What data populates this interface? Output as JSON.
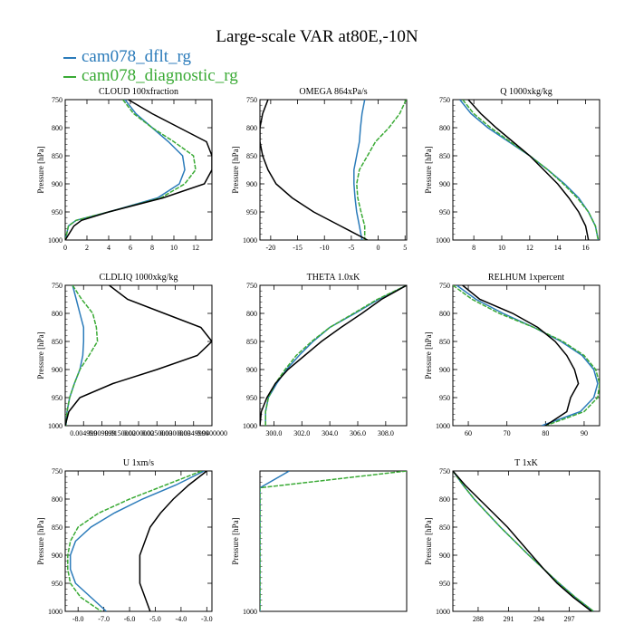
{
  "title": "Large-scale VAR at80E,-10N",
  "legend": [
    {
      "name": "cam078_dflt_rg",
      "color": "#2b7bba"
    },
    {
      "name": "cam078_diagnostic_rg",
      "color": "#3aaa35"
    }
  ],
  "reference_line_color": "#000000",
  "chart_data": [
    {
      "type": "line",
      "title": "CLOUD  100xfraction",
      "ylabel": "Pressure [hPa]",
      "xlim": [
        0,
        13.5
      ],
      "ylim": [
        750,
        1000
      ],
      "xticks": [
        0,
        2,
        4,
        6,
        8,
        10,
        12
      ],
      "xticklabels": [
        "0",
        "2",
        "4",
        "6",
        "8",
        "10",
        "12"
      ],
      "yticks": [
        750,
        800,
        850,
        900,
        950,
        1000
      ],
      "pressure": [
        750,
        775,
        800,
        825,
        850,
        875,
        900,
        925,
        950,
        965,
        975,
        1000
      ],
      "series": [
        {
          "values": [
            5.5,
            6.5,
            8.0,
            9.5,
            10.8,
            11.0,
            10.5,
            8.5,
            4.0,
            1.0,
            0.3,
            0.0
          ]
        },
        {
          "values": [
            5.3,
            6.3,
            8.0,
            10.0,
            11.8,
            12.0,
            11.0,
            8.8,
            4.0,
            1.0,
            0.3,
            0.0
          ]
        },
        {
          "values": [
            5.8,
            8.0,
            10.5,
            13.0,
            13.5,
            13.5,
            12.8,
            9.0,
            4.0,
            1.5,
            0.8,
            0.0
          ]
        }
      ]
    },
    {
      "type": "line",
      "title": "OMEGA  864xPa/s",
      "ylabel": "Pressure [hPa]",
      "xlim": [
        -22,
        5.3
      ],
      "ylim": [
        750,
        1000
      ],
      "xticks": [
        -20,
        -15,
        -10,
        -5,
        0,
        5
      ],
      "xticklabels": [
        "-20",
        "-15",
        "-10",
        "-5",
        "0",
        "5"
      ],
      "yticks": [
        750,
        800,
        850,
        900,
        950,
        1000
      ],
      "pressure": [
        750,
        775,
        800,
        825,
        850,
        875,
        900,
        925,
        950,
        975,
        1000
      ],
      "series": [
        {
          "values": [
            -2.5,
            -3.0,
            -3.3,
            -3.5,
            -4.0,
            -4.5,
            -4.5,
            -4.3,
            -4.0,
            -3.5,
            -3.0
          ]
        },
        {
          "values": [
            5.2,
            4.0,
            2.0,
            -0.5,
            -2.0,
            -3.5,
            -4.0,
            -3.8,
            -3.2,
            -2.5,
            -2.5
          ]
        },
        {
          "values": [
            -20.5,
            -21.5,
            -22.0,
            -22.0,
            -21.5,
            -20.5,
            -19.0,
            -16.0,
            -12.0,
            -7.0,
            -2.0
          ]
        }
      ]
    },
    {
      "type": "line",
      "title": "Q  1000xkg/kg",
      "ylabel": "Pressure [hPa]",
      "xlim": [
        6.5,
        17
      ],
      "ylim": [
        750,
        1000
      ],
      "xticks": [
        8,
        10,
        12,
        14,
        16
      ],
      "xticklabels": [
        "8",
        "10",
        "12",
        "14",
        "16"
      ],
      "yticks": [
        750,
        800,
        850,
        900,
        950,
        1000
      ],
      "pressure": [
        750,
        775,
        800,
        825,
        850,
        875,
        900,
        925,
        950,
        975,
        1000
      ],
      "series": [
        {
          "values": [
            7.0,
            7.8,
            9.0,
            10.5,
            12.0,
            13.3,
            14.5,
            15.5,
            16.2,
            16.7,
            16.9
          ]
        },
        {
          "values": [
            7.2,
            8.0,
            9.2,
            10.6,
            12.0,
            13.3,
            14.4,
            15.4,
            16.2,
            16.7,
            16.9
          ]
        },
        {
          "values": [
            7.6,
            8.5,
            9.6,
            10.8,
            12.0,
            13.0,
            14.0,
            14.8,
            15.5,
            16.0,
            16.2
          ]
        }
      ]
    },
    {
      "type": "line",
      "title": "CLDLIQ  1000xkg/kg",
      "ylabel": "Pressure [hPa]",
      "xlim": [
        0,
        0.04
      ],
      "ylim": [
        750,
        1000
      ],
      "xticks": [
        0.005,
        0.01,
        0.015,
        0.02,
        0.025,
        0.03,
        0.035,
        0.04
      ],
      "xticklabels": [
        "0.004999",
        "0.009999",
        "0.0150000",
        "0.0200000",
        "0.0250000",
        "0.0300000",
        "0.0349999",
        "0.0400000"
      ],
      "yticks": [
        750,
        800,
        850,
        900,
        950,
        1000
      ],
      "pressure": [
        750,
        775,
        800,
        825,
        850,
        875,
        900,
        925,
        950,
        975,
        1000
      ],
      "series": [
        {
          "values": [
            0.002,
            0.003,
            0.004,
            0.005,
            0.005,
            0.0048,
            0.004,
            0.0025,
            0.0012,
            0.0005,
            0.0002
          ]
        },
        {
          "values": [
            0.002,
            0.0045,
            0.0075,
            0.0085,
            0.0088,
            0.0065,
            0.004,
            0.0025,
            0.0012,
            0.0005,
            0.0002
          ]
        },
        {
          "values": [
            0.012,
            0.017,
            0.027,
            0.037,
            0.04,
            0.036,
            0.025,
            0.013,
            0.004,
            0.001,
            0.0
          ]
        }
      ]
    },
    {
      "type": "line",
      "title": "THETA  1.0xK",
      "ylabel": "",
      "xlim": [
        299,
        309.5
      ],
      "ylim": [
        750,
        1000
      ],
      "xticks": [
        300,
        302,
        304,
        306,
        308
      ],
      "xticklabels": [
        "300.0",
        "302.0",
        "304.0",
        "306.0",
        "308.0"
      ],
      "yticks": [
        750,
        800,
        850,
        900,
        950,
        1000
      ],
      "pressure": [
        750,
        775,
        800,
        825,
        850,
        875,
        900,
        925,
        950,
        975,
        1000
      ],
      "series": [
        {
          "values": [
            309.5,
            307.5,
            305.8,
            304.0,
            302.8,
            301.8,
            300.9,
            300.2,
            299.6,
            299.4,
            299.4
          ]
        },
        {
          "values": [
            309.5,
            307.4,
            305.7,
            304.0,
            302.7,
            301.6,
            300.8,
            300.1,
            299.6,
            299.4,
            299.4
          ]
        },
        {
          "values": [
            309.5,
            307.7,
            306.3,
            304.8,
            303.4,
            302.2,
            301.0,
            300.1,
            299.5,
            299.1,
            299.0
          ]
        }
      ]
    },
    {
      "type": "line",
      "title": "RELHUM  1xpercent",
      "ylabel": "Pressure [hPa]",
      "xlim": [
        56,
        94
      ],
      "ylim": [
        750,
        1000
      ],
      "xticks": [
        60,
        70,
        80,
        90
      ],
      "xticklabels": [
        "60",
        "70",
        "80",
        "90"
      ],
      "yticks": [
        750,
        800,
        850,
        900,
        950,
        1000
      ],
      "pressure": [
        750,
        775,
        800,
        825,
        850,
        875,
        900,
        925,
        950,
        975,
        1000
      ],
      "series": [
        {
          "values": [
            57.0,
            62.0,
            69.0,
            77.0,
            84.0,
            89.5,
            92.5,
            93.5,
            92.5,
            89.0,
            79.0
          ]
        },
        {
          "values": [
            56.0,
            61.0,
            68.0,
            77.0,
            84.5,
            90.0,
            93.0,
            94.0,
            93.5,
            90.0,
            80.0
          ]
        },
        {
          "values": [
            58.5,
            63.0,
            71.5,
            78.0,
            82.5,
            85.5,
            87.5,
            88.5,
            86.5,
            85.5,
            80.0
          ]
        }
      ]
    },
    {
      "type": "line",
      "title": "U  1xm/s",
      "ylabel": "Pressure [hPa]",
      "xlim": [
        -8.5,
        -2.8
      ],
      "ylim": [
        750,
        1000
      ],
      "xticks": [
        -8,
        -7,
        -6,
        -5,
        -4,
        -3
      ],
      "xticklabels": [
        "-8.0",
        "-7.0",
        "-6.0",
        "-5.0",
        "-4.0",
        "-3.0"
      ],
      "yticks": [
        750,
        800,
        850,
        900,
        950,
        1000
      ],
      "pressure": [
        750,
        775,
        800,
        825,
        850,
        875,
        900,
        925,
        950,
        975,
        1000
      ],
      "series": [
        {
          "values": [
            -3.1,
            -4.2,
            -5.5,
            -6.6,
            -7.5,
            -8.1,
            -8.3,
            -8.3,
            -8.1,
            -7.5,
            -6.9
          ]
        },
        {
          "values": [
            -3.2,
            -4.6,
            -6.0,
            -7.2,
            -8.0,
            -8.3,
            -8.4,
            -8.4,
            -8.3,
            -7.9,
            -7.1
          ]
        },
        {
          "values": [
            -3.0,
            -3.7,
            -4.3,
            -4.8,
            -5.2,
            -5.4,
            -5.6,
            -5.6,
            -5.6,
            -5.4,
            -5.2
          ]
        }
      ]
    },
    {
      "type": "line",
      "title": "",
      "ylabel": "Pressure [hPa]",
      "xlim": [
        0,
        1
      ],
      "ylim": [
        750,
        1000
      ],
      "xticks": [],
      "xticklabels": [],
      "yticks": [
        1000
      ],
      "yticklabels": [
        "1000"
      ],
      "pressure": [
        750,
        780,
        1000
      ],
      "series": [
        {
          "values": [
            0.2,
            0.0,
            0.0
          ]
        },
        {
          "values": [
            1.0,
            0.0,
            0.0
          ]
        }
      ]
    },
    {
      "type": "line",
      "title": "T  1xK",
      "ylabel": "Pressure [hPa]",
      "xlim": [
        285.5,
        300
      ],
      "ylim": [
        750,
        1000
      ],
      "xticks": [
        288,
        291,
        294,
        297
      ],
      "xticklabels": [
        "288",
        "291",
        "294",
        "297"
      ],
      "yticks": [
        750,
        800,
        850,
        900,
        950,
        1000
      ],
      "pressure": [
        750,
        775,
        800,
        825,
        850,
        875,
        900,
        925,
        950,
        975,
        1000
      ],
      "series": [
        {
          "values": [
            285.5,
            286.5,
            287.6,
            288.9,
            290.2,
            291.6,
            293.0,
            294.5,
            296.0,
            297.6,
            299.4
          ]
        },
        {
          "values": [
            285.5,
            286.5,
            287.6,
            288.9,
            290.2,
            291.6,
            293.0,
            294.5,
            296.0,
            297.6,
            299.4
          ]
        },
        {
          "values": [
            285.5,
            286.7,
            288.1,
            289.5,
            290.9,
            292.1,
            293.3,
            294.5,
            295.8,
            297.4,
            299.2
          ]
        }
      ]
    }
  ]
}
